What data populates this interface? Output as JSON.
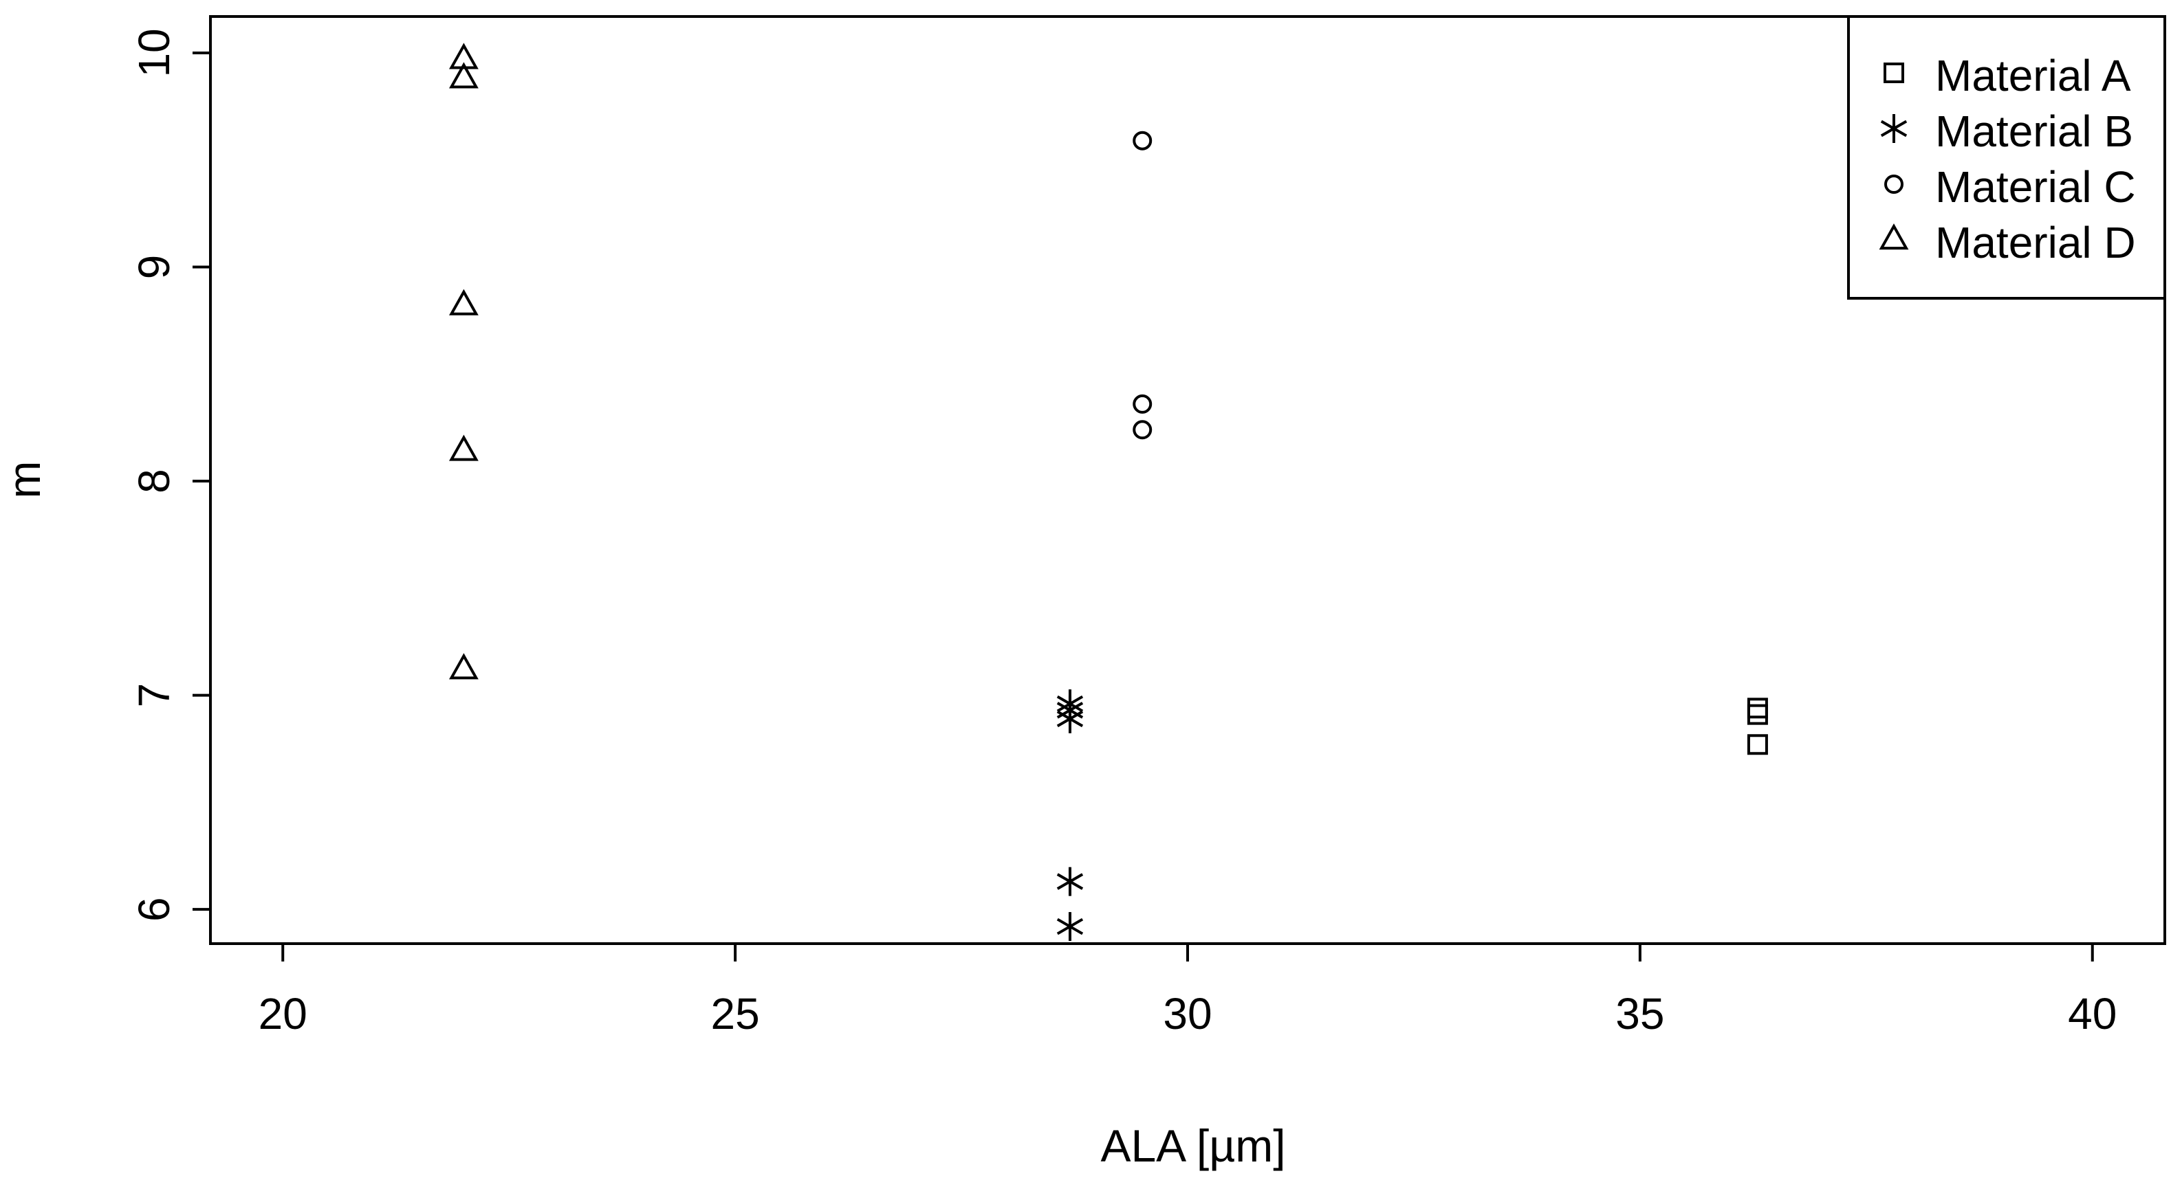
{
  "chart_data": {
    "type": "scatter",
    "title": "",
    "xlabel": "ALA [µm]",
    "ylabel": "m",
    "xlim": [
      19.2,
      40.8
    ],
    "ylim": [
      5.84,
      10.17
    ],
    "xticks": [
      20,
      25,
      30,
      35,
      40
    ],
    "yticks": [
      6,
      7,
      8,
      9,
      10
    ],
    "grid": false,
    "legend": {
      "position": "top-right"
    },
    "color": "#000000",
    "series": [
      {
        "name": "Material A",
        "marker": "square",
        "points": [
          {
            "x": 36.3,
            "y": 6.94
          },
          {
            "x": 36.3,
            "y": 6.91
          },
          {
            "x": 36.3,
            "y": 6.77
          }
        ]
      },
      {
        "name": "Material B",
        "marker": "asterisk",
        "points": [
          {
            "x": 28.7,
            "y": 6.96
          },
          {
            "x": 28.7,
            "y": 6.93
          },
          {
            "x": 28.7,
            "y": 6.89
          },
          {
            "x": 28.7,
            "y": 6.13
          },
          {
            "x": 28.7,
            "y": 5.92
          }
        ]
      },
      {
        "name": "Material C",
        "marker": "circle",
        "points": [
          {
            "x": 29.5,
            "y": 9.59
          },
          {
            "x": 29.5,
            "y": 8.36
          },
          {
            "x": 29.5,
            "y": 8.24
          }
        ]
      },
      {
        "name": "Material D",
        "marker": "triangle",
        "points": [
          {
            "x": 22.0,
            "y": 9.97
          },
          {
            "x": 22.0,
            "y": 9.88
          },
          {
            "x": 22.0,
            "y": 8.82
          },
          {
            "x": 22.0,
            "y": 8.14
          },
          {
            "x": 22.0,
            "y": 7.12
          }
        ]
      }
    ]
  }
}
